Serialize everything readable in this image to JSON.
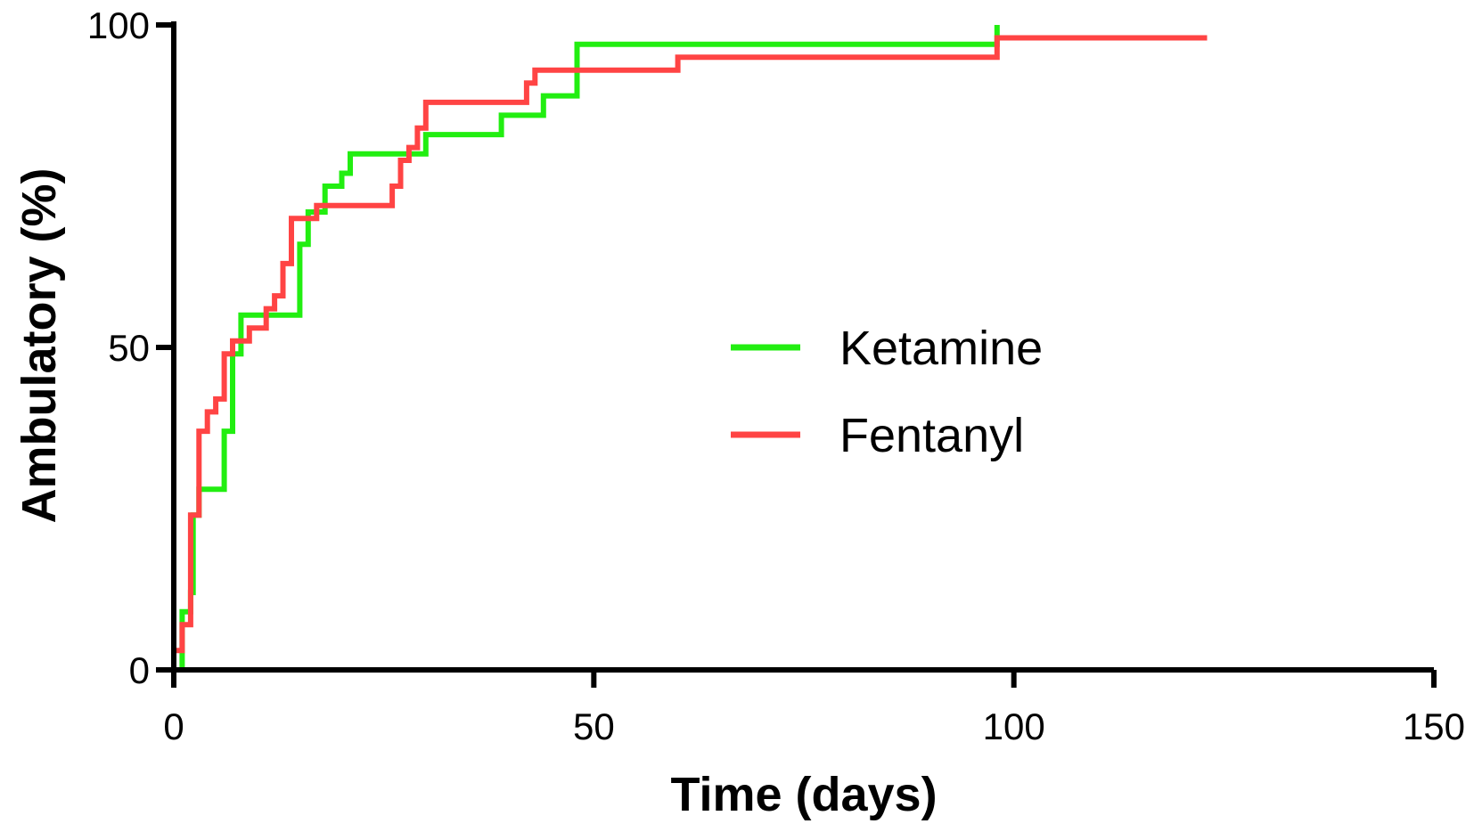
{
  "chart_data": {
    "type": "line",
    "step": true,
    "title": "",
    "xlabel": "Time (days)",
    "ylabel": "Ambulatory (%)",
    "xlim": [
      0,
      150
    ],
    "ylim": [
      0,
      100
    ],
    "xticks": [
      0,
      50,
      100,
      150
    ],
    "yticks": [
      0,
      50,
      100
    ],
    "grid": false,
    "legend": "center-right",
    "series": [
      {
        "name": "Ketamine",
        "color": "#22ee11",
        "points": [
          [
            0,
            0
          ],
          [
            1,
            0
          ],
          [
            1,
            9
          ],
          [
            2,
            9
          ],
          [
            2,
            12
          ],
          [
            2.3,
            12
          ],
          [
            2.3,
            24
          ],
          [
            3,
            24
          ],
          [
            3,
            28
          ],
          [
            6,
            28
          ],
          [
            6,
            37
          ],
          [
            7,
            37
          ],
          [
            7,
            49
          ],
          [
            8,
            49
          ],
          [
            8,
            55
          ],
          [
            15,
            55
          ],
          [
            15,
            66
          ],
          [
            16,
            66
          ],
          [
            16,
            71
          ],
          [
            18,
            71
          ],
          [
            18,
            75
          ],
          [
            20,
            75
          ],
          [
            20,
            77
          ],
          [
            21,
            77
          ],
          [
            21,
            80
          ],
          [
            30,
            80
          ],
          [
            30,
            83
          ],
          [
            39,
            83
          ],
          [
            39,
            86
          ],
          [
            44,
            86
          ],
          [
            44,
            89
          ],
          [
            48,
            89
          ],
          [
            48,
            97
          ],
          [
            98,
            97
          ],
          [
            98,
            100
          ]
        ]
      },
      {
        "name": "Fentanyl",
        "color": "#ff4444",
        "points": [
          [
            0,
            0
          ],
          [
            0,
            3
          ],
          [
            1,
            3
          ],
          [
            1,
            7
          ],
          [
            2,
            7
          ],
          [
            2,
            24
          ],
          [
            3,
            24
          ],
          [
            3,
            37
          ],
          [
            4,
            37
          ],
          [
            4,
            40
          ],
          [
            5,
            40
          ],
          [
            5,
            42
          ],
          [
            6,
            42
          ],
          [
            6,
            49
          ],
          [
            7,
            49
          ],
          [
            7,
            51
          ],
          [
            9,
            51
          ],
          [
            9,
            53
          ],
          [
            11,
            53
          ],
          [
            11,
            56
          ],
          [
            12,
            56
          ],
          [
            12,
            58
          ],
          [
            13,
            58
          ],
          [
            13,
            63
          ],
          [
            14,
            63
          ],
          [
            14,
            70
          ],
          [
            17,
            70
          ],
          [
            17,
            72
          ],
          [
            26,
            72
          ],
          [
            26,
            75
          ],
          [
            27,
            75
          ],
          [
            27,
            79
          ],
          [
            28,
            79
          ],
          [
            28,
            81
          ],
          [
            29,
            81
          ],
          [
            29,
            84
          ],
          [
            30,
            84
          ],
          [
            30,
            88
          ],
          [
            42,
            88
          ],
          [
            42,
            91
          ],
          [
            43,
            91
          ],
          [
            43,
            93
          ],
          [
            60,
            93
          ],
          [
            60,
            95
          ],
          [
            98,
            95
          ],
          [
            98,
            98
          ],
          [
            123,
            98
          ]
        ]
      }
    ]
  }
}
